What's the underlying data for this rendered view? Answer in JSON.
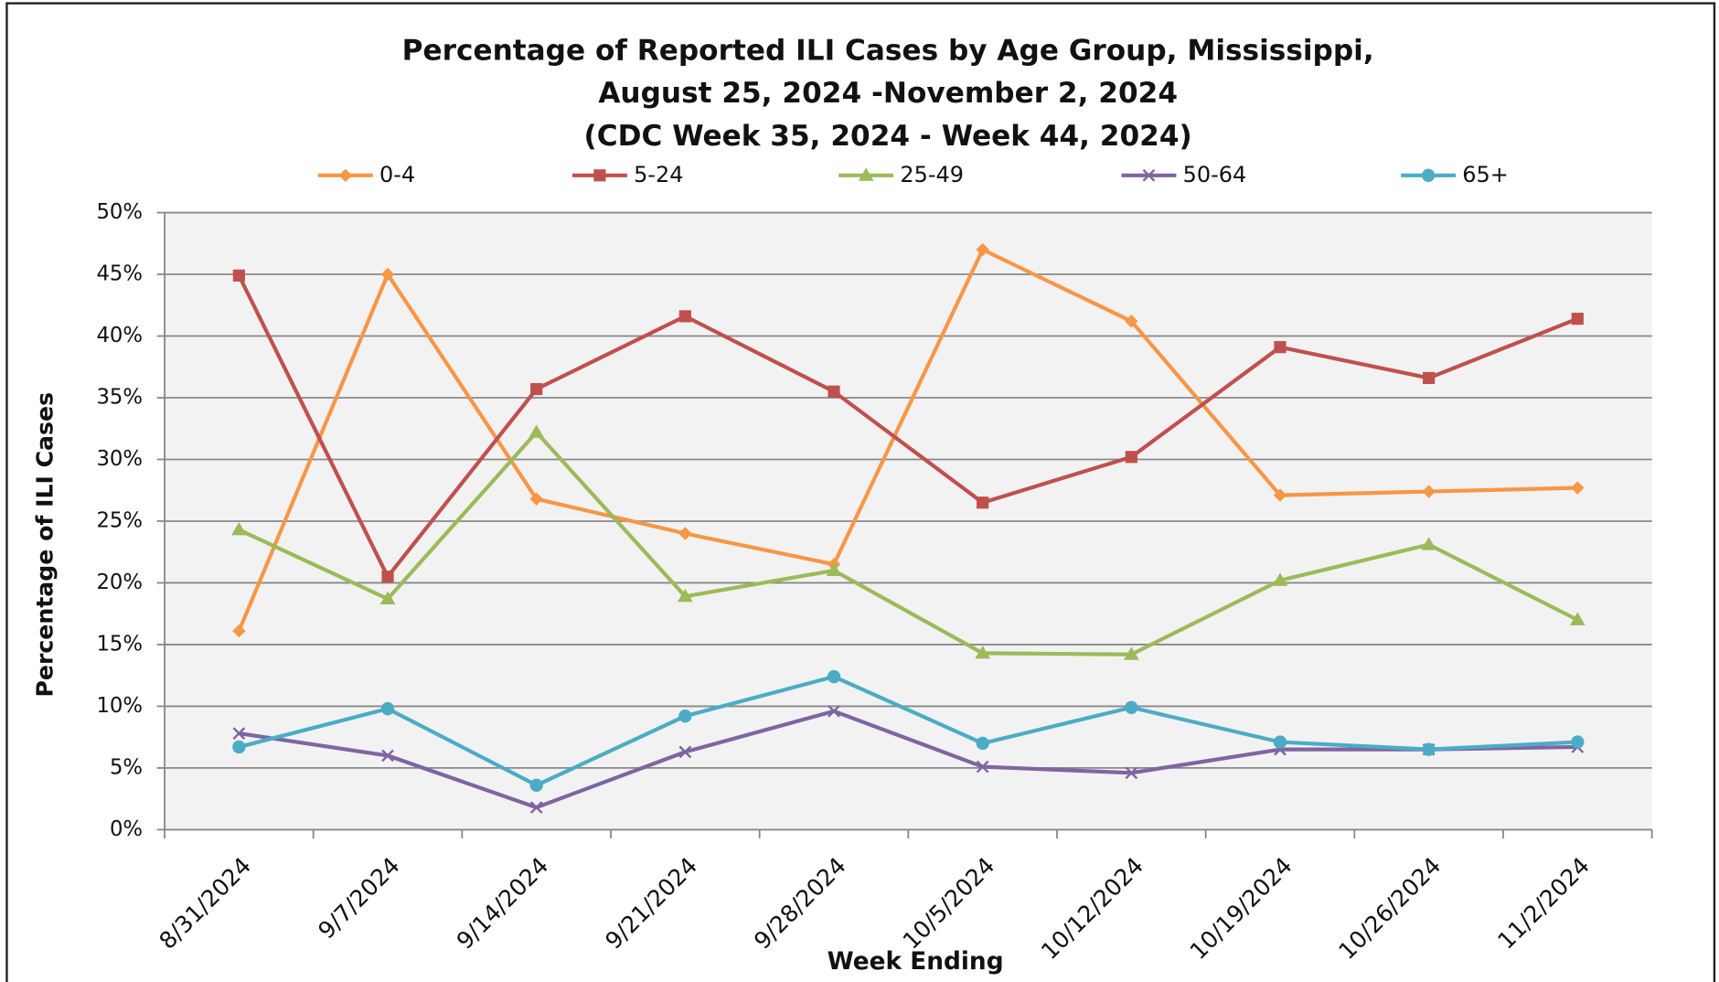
{
  "chart_data": {
    "type": "line",
    "title": [
      "Percentage of Reported ILI Cases by Age Group, Mississippi,",
      "August 25, 2024 -November 2, 2024",
      "(CDC Week 35, 2024 - Week 44, 2024)"
    ],
    "x_label": "Week Ending",
    "y_label": "Percentage of ILI Cases",
    "categories": [
      "8/31/2024",
      "9/7/2024",
      "9/14/2024",
      "9/21/2024",
      "9/28/2024",
      "10/5/2024",
      "10/12/2024",
      "10/19/2024",
      "10/26/2024",
      "11/2/2024"
    ],
    "series": [
      {
        "name": "0-4",
        "color": "#f79646",
        "marker": "diamond",
        "values": [
          16.1,
          45.0,
          26.8,
          24.0,
          21.5,
          47.0,
          41.2,
          27.1,
          27.4,
          27.7
        ]
      },
      {
        "name": "5-24",
        "color": "#c0504d",
        "marker": "square",
        "values": [
          44.9,
          20.5,
          35.7,
          41.6,
          35.5,
          26.5,
          30.2,
          39.1,
          36.6,
          41.4
        ]
      },
      {
        "name": "25-49",
        "color": "#9bbb59",
        "marker": "triangle",
        "values": [
          24.3,
          18.7,
          32.2,
          18.9,
          21.0,
          14.3,
          14.2,
          20.2,
          23.1,
          17.0
        ]
      },
      {
        "name": "50-64",
        "color": "#8064a2",
        "marker": "x",
        "values": [
          7.8,
          6.0,
          1.8,
          6.3,
          9.6,
          5.1,
          4.6,
          6.5,
          6.5,
          6.7
        ]
      },
      {
        "name": "65+",
        "color": "#4bacc6",
        "marker": "circle",
        "values": [
          6.7,
          9.8,
          3.6,
          9.2,
          12.4,
          7.0,
          9.9,
          7.1,
          6.5,
          7.1
        ]
      }
    ],
    "ylim": [
      0,
      50
    ],
    "yticks": [
      {
        "value": 0,
        "label": "0%"
      },
      {
        "value": 5,
        "label": "5%"
      },
      {
        "value": 10,
        "label": "10%"
      },
      {
        "value": 15,
        "label": "15%"
      },
      {
        "value": 20,
        "label": "20%"
      },
      {
        "value": 25,
        "label": "25%"
      },
      {
        "value": 30,
        "label": "30%"
      },
      {
        "value": 35,
        "label": "35%"
      },
      {
        "value": 40,
        "label": "40%"
      },
      {
        "value": 45,
        "label": "45%"
      },
      {
        "value": 50,
        "label": "50%"
      }
    ],
    "grid": true,
    "legend": "top"
  }
}
